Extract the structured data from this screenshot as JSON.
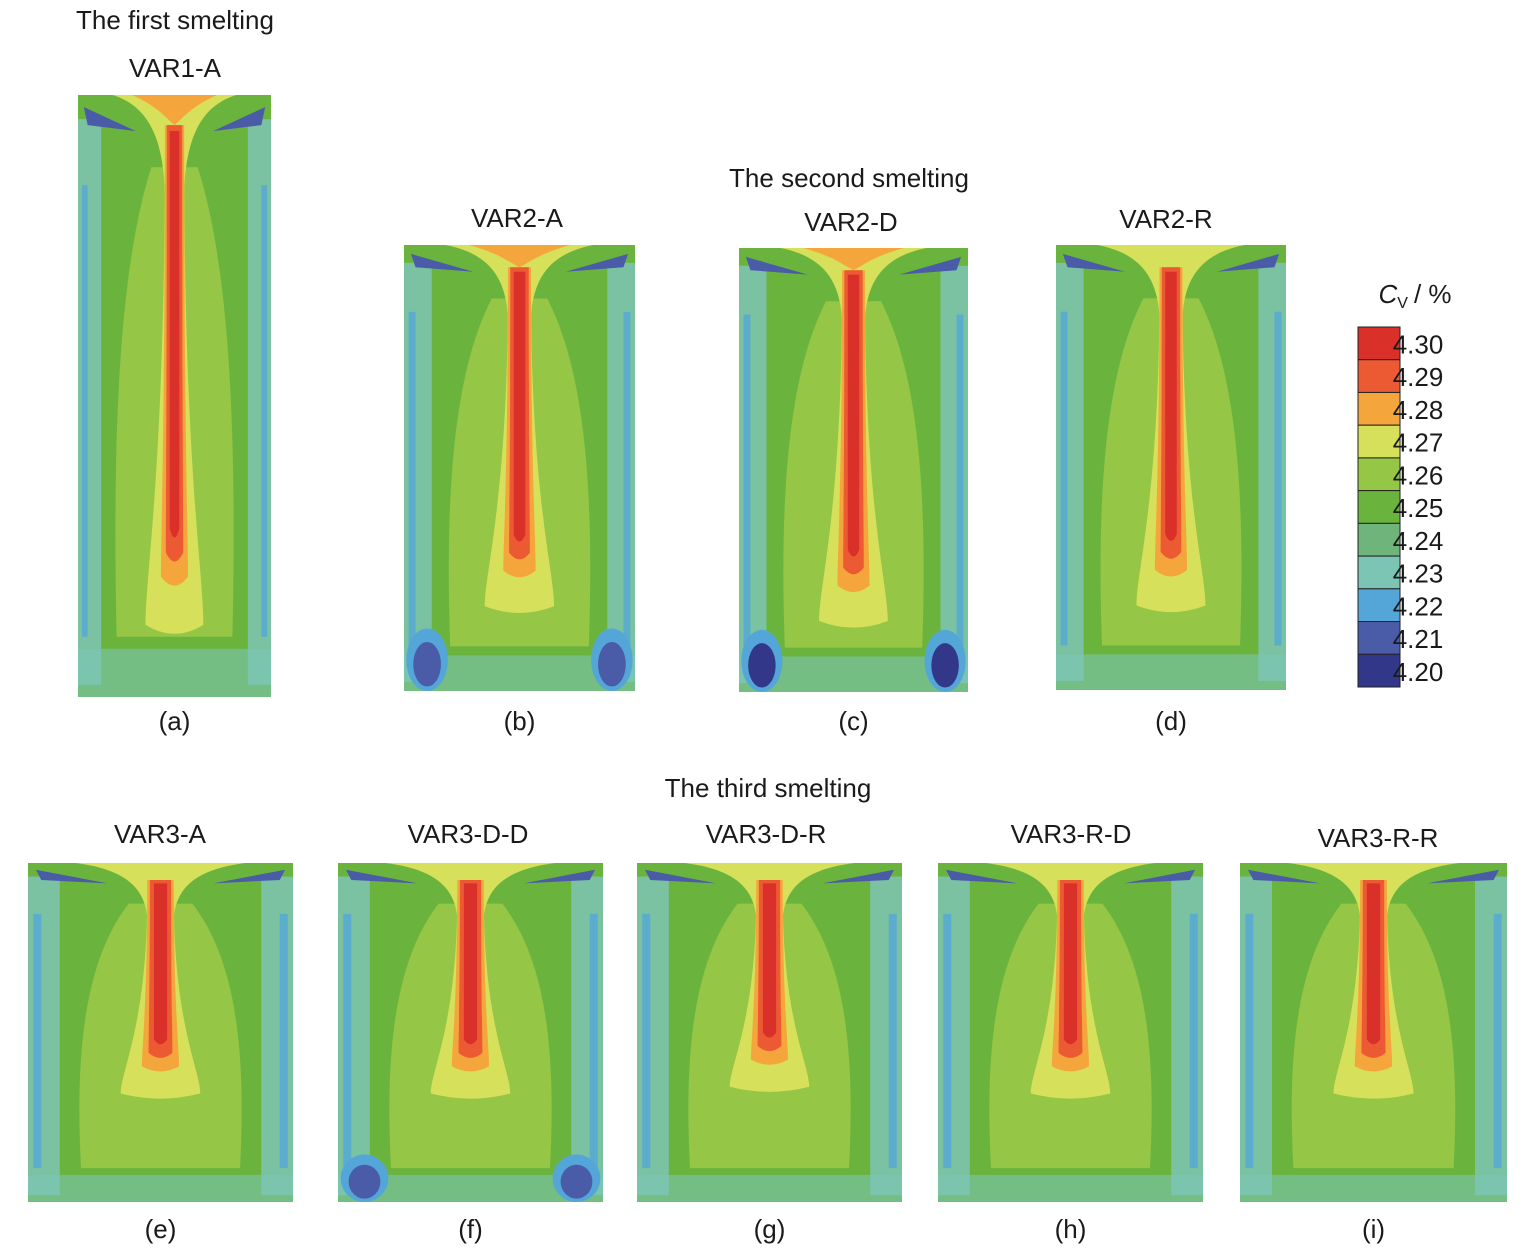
{
  "figure": {
    "groups": [
      {
        "title": "The first smelting",
        "panels": [
          {
            "title": "VAR1-A",
            "label": "(a)"
          }
        ]
      },
      {
        "title": "The second smelting",
        "panels": [
          {
            "title": "VAR2-A",
            "label": "(b)"
          },
          {
            "title": "VAR2-D",
            "label": "(c)"
          },
          {
            "title": "VAR2-R",
            "label": "(d)"
          }
        ]
      },
      {
        "title": "The third smelting",
        "panels": [
          {
            "title": "VAR3-A",
            "label": "(e)"
          },
          {
            "title": "VAR3-D-D",
            "label": "(f)"
          },
          {
            "title": "VAR3-D-R",
            "label": "(g)"
          },
          {
            "title": "VAR3-R-D",
            "label": "(h)"
          },
          {
            "title": "VAR3-R-R",
            "label": "(i)"
          }
        ]
      }
    ],
    "colorbar": {
      "symbol": "C",
      "subscript": "V",
      "unit": "/ %",
      "levels": [
        {
          "label": "4.30",
          "color": "#d9302a"
        },
        {
          "label": "4.29",
          "color": "#ec5a33"
        },
        {
          "label": "4.28",
          "color": "#f4a63c"
        },
        {
          "label": "4.27",
          "color": "#d6e05a"
        },
        {
          "label": "4.26",
          "color": "#96c646"
        },
        {
          "label": "4.25",
          "color": "#6ab43e"
        },
        {
          "label": "4.24",
          "color": "#6fb47a"
        },
        {
          "label": "4.23",
          "color": "#7cc4b4"
        },
        {
          "label": "4.22",
          "color": "#54a6d8"
        },
        {
          "label": "4.21",
          "color": "#4a5ca8"
        },
        {
          "label": "4.20",
          "color": "#33378a"
        }
      ]
    }
  }
}
